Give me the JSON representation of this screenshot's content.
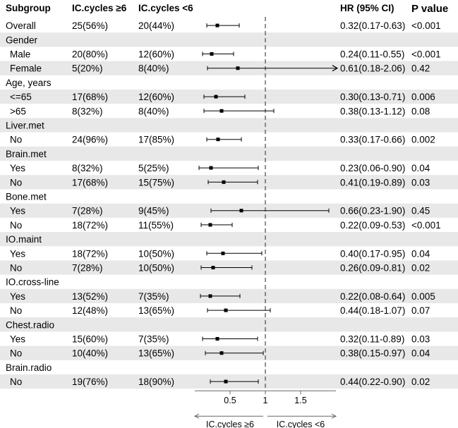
{
  "chart_data": {
    "type": "forest",
    "headers": {
      "subgroup": "Subgroup",
      "group1": "IC.cycles ≥6",
      "group2": "IC.cycles <6",
      "hr": "HR (95% CI)",
      "p": "P value"
    },
    "rows": [
      {
        "label": "Overall",
        "header": false,
        "indent": false,
        "n1": "25(56%)",
        "n2": "20(44%)",
        "hr": 0.32,
        "lo": 0.17,
        "hi": 0.63,
        "hr_text": "0.32(0.17-0.63)",
        "p": "<0.001"
      },
      {
        "label": "Gender",
        "header": true
      },
      {
        "label": "Male",
        "header": false,
        "indent": true,
        "n1": "20(80%)",
        "n2": "12(60%)",
        "hr": 0.24,
        "lo": 0.11,
        "hi": 0.55,
        "hr_text": "0.24(0.11-0.55)",
        "p": "<0.001"
      },
      {
        "label": "Female",
        "header": false,
        "indent": true,
        "n1": "5(20%)",
        "n2": "8(40%)",
        "hr": 0.61,
        "lo": 0.18,
        "hi": 2.06,
        "hr_text": "0.61(0.18-2.06)",
        "p": "0.42",
        "truncated": true
      },
      {
        "label": "Age, years",
        "header": true
      },
      {
        "label": "<=65",
        "header": false,
        "indent": true,
        "n1": "17(68%)",
        "n2": "12(60%)",
        "hr": 0.3,
        "lo": 0.13,
        "hi": 0.71,
        "hr_text": "0.30(0.13-0.71)",
        "p": "0.006"
      },
      {
        "label": ">65",
        "header": false,
        "indent": true,
        "n1": "8(32%)",
        "n2": "8(40%)",
        "hr": 0.38,
        "lo": 0.13,
        "hi": 1.12,
        "hr_text": "0.38(0.13-1.12)",
        "p": "0.08"
      },
      {
        "label": "Liver.met",
        "header": true
      },
      {
        "label": "No",
        "header": false,
        "indent": true,
        "n1": "24(96%)",
        "n2": "17(85%)",
        "hr": 0.33,
        "lo": 0.17,
        "hi": 0.66,
        "hr_text": "0.33(0.17-0.66)",
        "p": "0.002"
      },
      {
        "label": "Brain.met",
        "header": true
      },
      {
        "label": "Yes",
        "header": false,
        "indent": true,
        "n1": "8(32%)",
        "n2": "5(25%)",
        "hr": 0.23,
        "lo": 0.06,
        "hi": 0.9,
        "hr_text": "0.23(0.06-0.90)",
        "p": "0.04"
      },
      {
        "label": "No",
        "header": false,
        "indent": true,
        "n1": "17(68%)",
        "n2": "15(75%)",
        "hr": 0.41,
        "lo": 0.19,
        "hi": 0.89,
        "hr_text": "0.41(0.19-0.89)",
        "p": "0.03"
      },
      {
        "label": "Bone.met",
        "header": true
      },
      {
        "label": "Yes",
        "header": false,
        "indent": true,
        "n1": "7(28%)",
        "n2": "9(45%)",
        "hr": 0.66,
        "lo": 0.23,
        "hi": 1.9,
        "hr_text": "0.66(0.23-1.90)",
        "p": "0.45"
      },
      {
        "label": "No",
        "header": false,
        "indent": true,
        "n1": "18(72%)",
        "n2": "11(55%)",
        "hr": 0.22,
        "lo": 0.09,
        "hi": 0.53,
        "hr_text": "0.22(0.09-0.53)",
        "p": "<0.001"
      },
      {
        "label": "IO.maint",
        "header": true
      },
      {
        "label": "Yes",
        "header": false,
        "indent": true,
        "n1": "18(72%)",
        "n2": "10(50%)",
        "hr": 0.4,
        "lo": 0.17,
        "hi": 0.95,
        "hr_text": "0.40(0.17-0.95)",
        "p": "0.04"
      },
      {
        "label": "No",
        "header": false,
        "indent": true,
        "n1": "7(28%)",
        "n2": "10(50%)",
        "hr": 0.26,
        "lo": 0.09,
        "hi": 0.81,
        "hr_text": "0.26(0.09-0.81)",
        "p": "0.02"
      },
      {
        "label": "IO.cross-line",
        "header": true
      },
      {
        "label": "Yes",
        "header": false,
        "indent": true,
        "n1": "13(52%)",
        "n2": "7(35%)",
        "hr": 0.22,
        "lo": 0.08,
        "hi": 0.64,
        "hr_text": "0.22(0.08-0.64)",
        "p": "0.005"
      },
      {
        "label": "No",
        "header": false,
        "indent": true,
        "n1": "12(48%)",
        "n2": "13(65%)",
        "hr": 0.44,
        "lo": 0.18,
        "hi": 1.07,
        "hr_text": "0.44(0.18-1.07)",
        "p": "0.07"
      },
      {
        "label": "Chest.radio",
        "header": true
      },
      {
        "label": "Yes",
        "header": false,
        "indent": true,
        "n1": "15(60%)",
        "n2": "7(35%)",
        "hr": 0.32,
        "lo": 0.11,
        "hi": 0.89,
        "hr_text": "0.32(0.11-0.89)",
        "p": "0.03"
      },
      {
        "label": "No",
        "header": false,
        "indent": true,
        "n1": "10(40%)",
        "n2": "13(65%)",
        "hr": 0.38,
        "lo": 0.15,
        "hi": 0.97,
        "hr_text": "0.38(0.15-0.97)",
        "p": "0.04"
      },
      {
        "label": "Brain.radio",
        "header": true
      },
      {
        "label": "No",
        "header": false,
        "indent": true,
        "n1": "19(76%)",
        "n2": "18(90%)",
        "hr": 0.44,
        "lo": 0.22,
        "hi": 0.9,
        "hr_text": "0.44(0.22-0.90)",
        "p": "0.02"
      }
    ],
    "x_axis": {
      "range": [
        0.0,
        2.0
      ],
      "ticks": [
        0.5,
        1,
        1.5
      ],
      "tick_labels": [
        "0.5",
        "1",
        "1.5"
      ],
      "reference_line": 1
    },
    "favors": {
      "left": "IC.cycles ≥6",
      "right": "IC.cycles <6"
    },
    "colors": {
      "stripe": "#e8e8e8",
      "ink": "#000000",
      "refline": "#555555",
      "axis": "#666666"
    }
  }
}
